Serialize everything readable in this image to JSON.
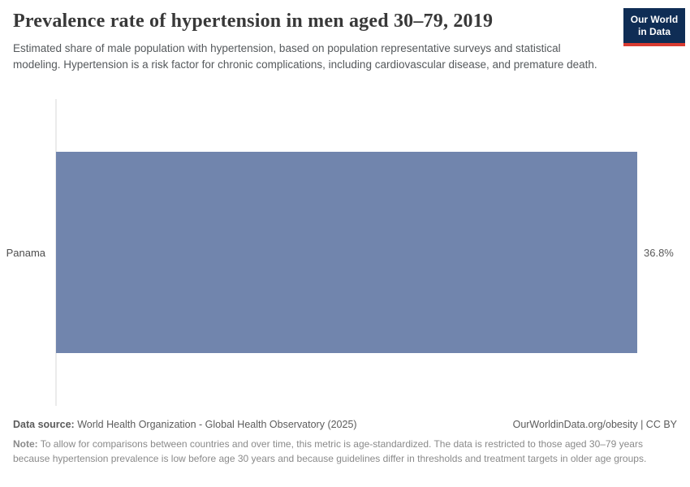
{
  "header": {
    "title": "Prevalence rate of hypertension in men aged 30–79, 2019",
    "subtitle": "Estimated share of male population with hypertension, based on population representative surveys and statistical modeling. Hypertension is a risk factor for chronic complications, including cardiovascular disease, and premature death.",
    "logo": {
      "line1": "Our World",
      "line2": "in Data",
      "background_color": "#0f2d55",
      "stripe_color": "#d93b31"
    }
  },
  "chart_data": {
    "type": "bar",
    "orientation": "horizontal",
    "title": "Prevalence rate of hypertension in men aged 30–79, 2019",
    "categories": [
      "Panama"
    ],
    "values": [
      36.8
    ],
    "value_labels": [
      "36.8%"
    ],
    "xlabel": "",
    "ylabel": "",
    "xlim": [
      0,
      36.8
    ],
    "grid": false,
    "legend": false,
    "bar_color": "#7185ad",
    "axis_line_color": "#ebebeb"
  },
  "footer": {
    "source_label": "Data source:",
    "source_text": " World Health Organization - Global Health Observatory (2025)",
    "license": "OurWorldinData.org/obesity | CC BY",
    "note_label": "Note:",
    "note_text": " To allow for comparisons between countries and over time, this metric is age-standardized. The data is restricted to those aged 30–79 years because hypertension prevalence is low before age 30 years and because guidelines differ in thresholds and treatment targets in older age groups."
  }
}
